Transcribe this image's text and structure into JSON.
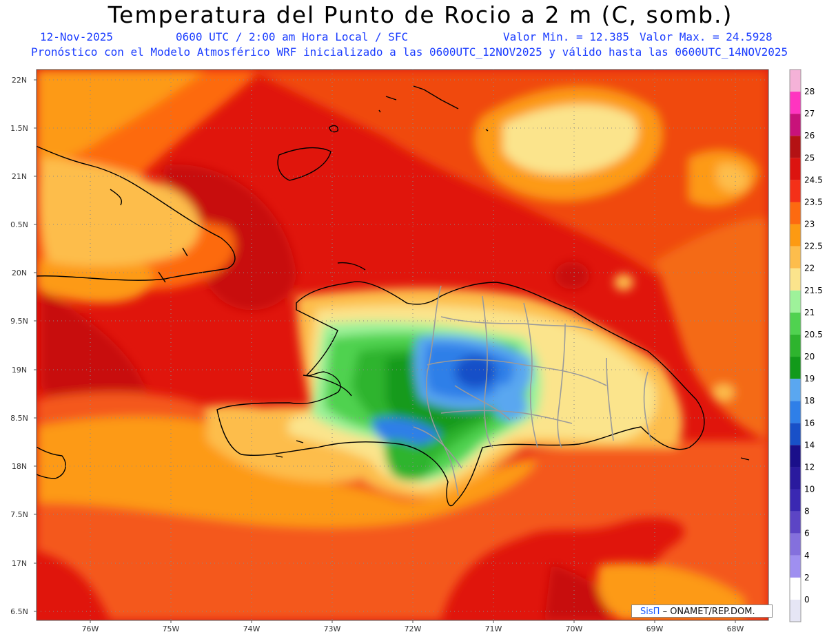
{
  "header": {
    "title": "Temperatura del Punto de Rocio a 2 m (C, somb.)",
    "date": "12-Nov-2025",
    "time": "0600 UTC / 2:00 am Hora Local / SFC",
    "min": "Valor Min. = 12.385",
    "max": "Valor Max. = 24.5928",
    "forecast": "Pronóstico con el Modelo Atmosférico WRF inicializado a las 0600UTC_12NOV2025 y válido hasta las  0600UTC_14NOV2025"
  },
  "map": {
    "lat_labels": [
      "22N",
      "1.5N",
      "21N",
      "0.5N",
      "20N",
      "9.5N",
      "19N",
      "8.5N",
      "18N",
      "7.5N",
      "17N",
      "6.5N"
    ],
    "lon_labels": [
      "76W",
      "75W",
      "74W",
      "73W",
      "72W",
      "71W",
      "70W",
      "69W",
      "68W"
    ],
    "background_color": "#e0120a"
  },
  "colorbar": {
    "labels": [
      "0",
      "2",
      "4",
      "6",
      "8",
      "10",
      "12",
      "14",
      "16",
      "18",
      "19",
      "20",
      "20.5",
      "21",
      "21.5",
      "22",
      "22.5",
      "23",
      "23.5",
      "24.5",
      "25",
      "26",
      "27",
      "28"
    ],
    "colors": [
      "#e6e6f5",
      "#ffffff",
      "#9f8ff0",
      "#8470dd",
      "#5c45c5",
      "#3a28b2",
      "#2a1a9e",
      "#1a0f8a",
      "#1850c8",
      "#2f7fe8",
      "#5aa7f0",
      "#129a1a",
      "#2eb42e",
      "#50d250",
      "#9ef29a",
      "#fbe48c",
      "#fdbd4c",
      "#fd9a12",
      "#fd6a10",
      "#f43018",
      "#dc1410",
      "#b41214",
      "#c8127a",
      "#ff34c0",
      "#f5b2d8"
    ]
  },
  "credit": {
    "brand": "SisΠ",
    "text": "– ONAMET/REP.DOM."
  }
}
